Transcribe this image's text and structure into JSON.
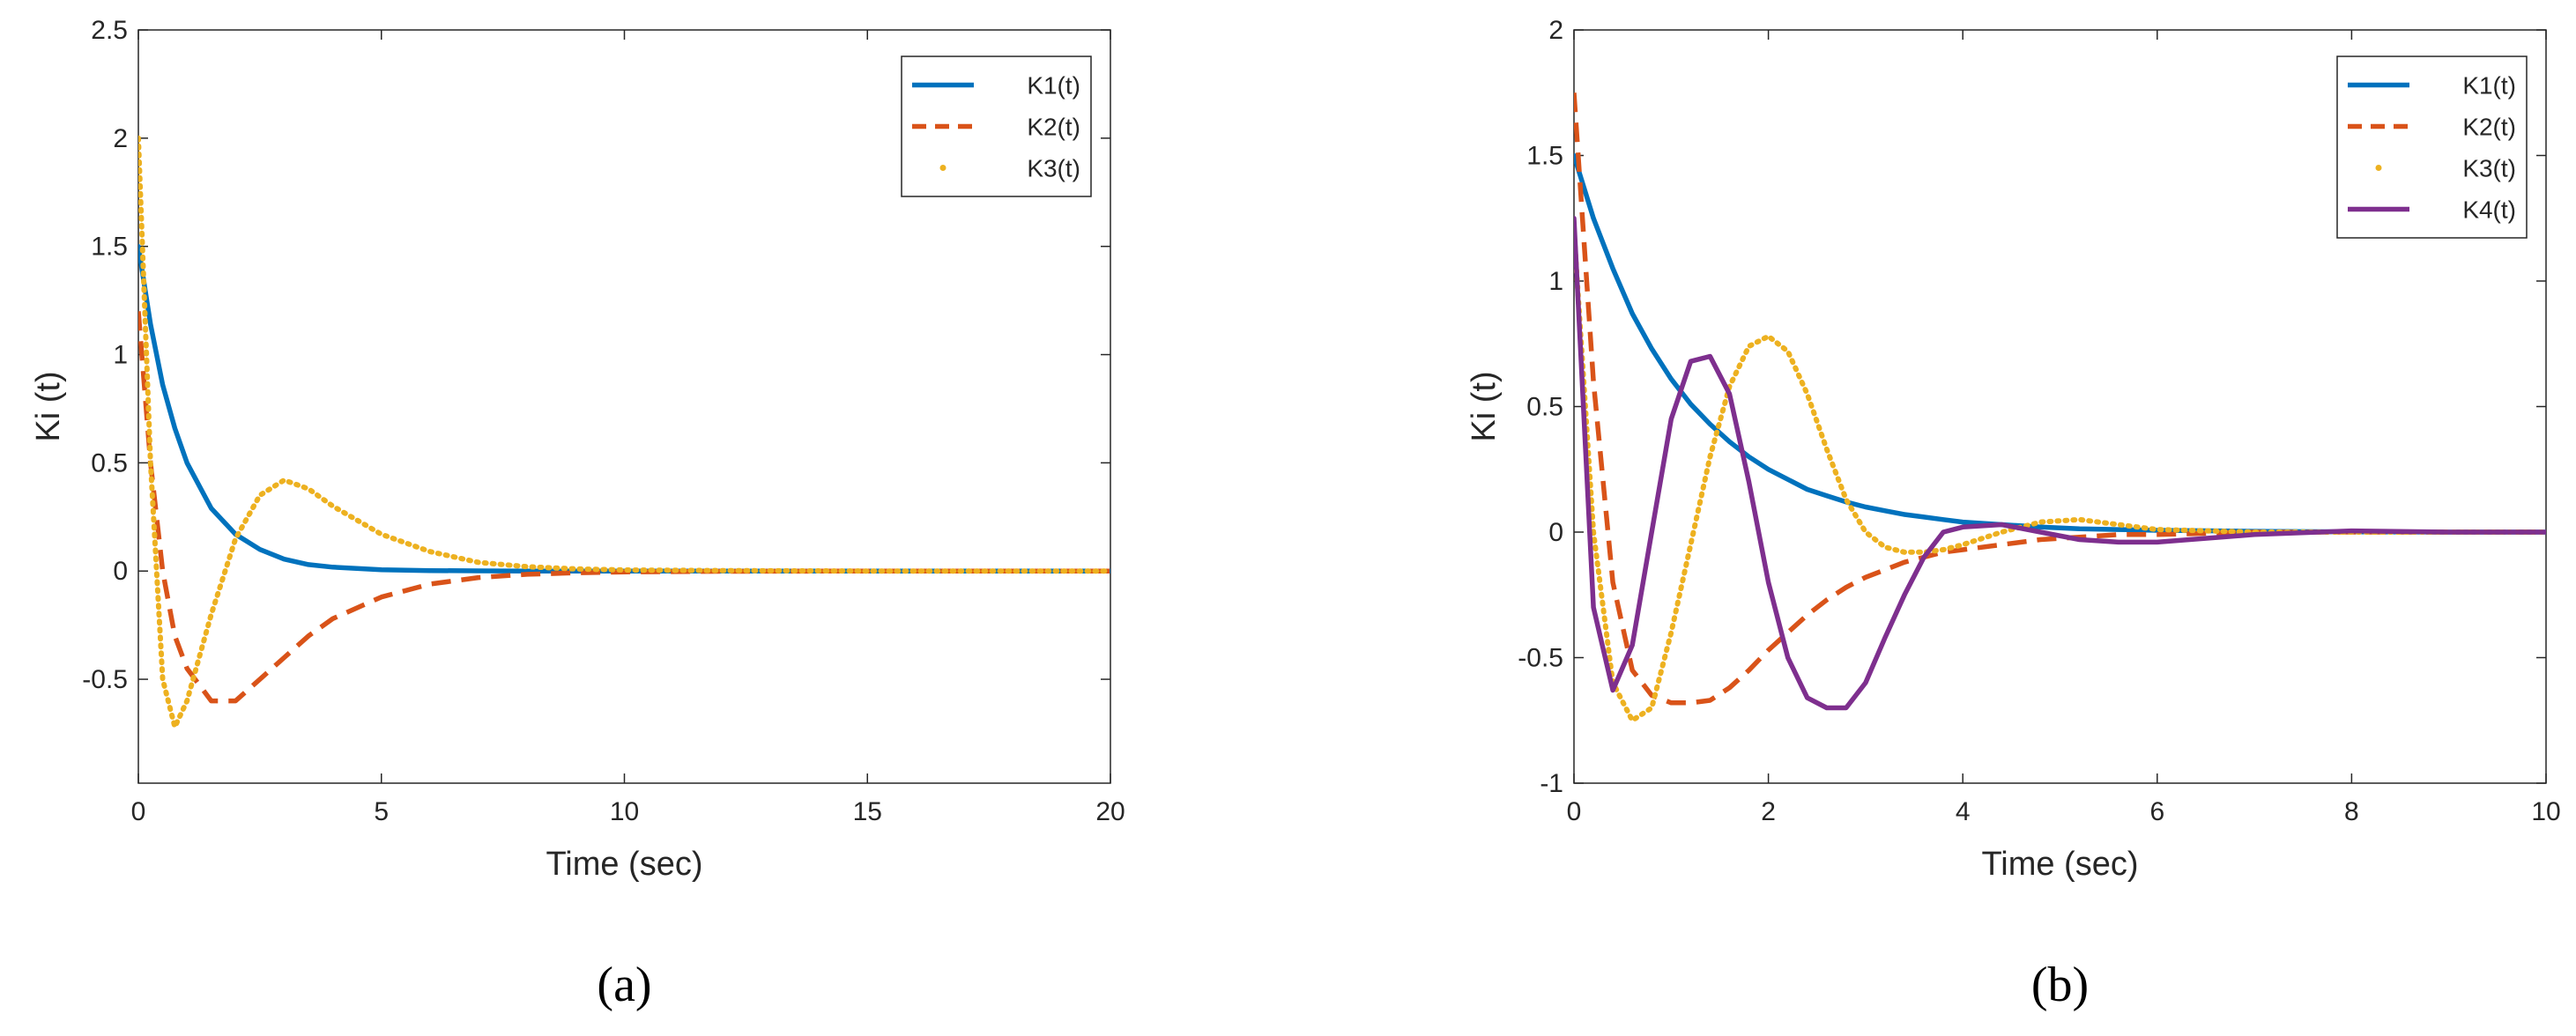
{
  "chart_data": [
    {
      "type": "line",
      "panel_label": "(a)",
      "xlabel": "Time (sec)",
      "ylabel": "Ki (t)",
      "x": [
        0,
        0.25,
        0.5,
        0.75,
        1,
        1.5,
        2,
        2.5,
        3,
        3.5,
        4,
        5,
        6,
        7,
        8,
        9,
        10,
        12,
        15,
        20
      ],
      "series": [
        {
          "name": "K1(t)",
          "color": "#0072bd",
          "style": "solid",
          "values": [
            1.5,
            1.14,
            0.86,
            0.66,
            0.5,
            0.29,
            0.17,
            0.1,
            0.055,
            0.03,
            0.018,
            0.006,
            0.002,
            0.001,
            0,
            0,
            0,
            0,
            0,
            0
          ]
        },
        {
          "name": "K2(t)",
          "color": "#d95319",
          "style": "dashed",
          "values": [
            1.2,
            0.5,
            0.0,
            -0.3,
            -0.45,
            -0.6,
            -0.6,
            -0.5,
            -0.4,
            -0.3,
            -0.22,
            -0.12,
            -0.06,
            -0.03,
            -0.015,
            -0.008,
            -0.004,
            -0.001,
            0,
            0
          ]
        },
        {
          "name": "K3(t)",
          "color": "#edb120",
          "style": "dotted",
          "values": [
            2.0,
            0.5,
            -0.5,
            -0.72,
            -0.6,
            -0.2,
            0.15,
            0.35,
            0.42,
            0.38,
            0.3,
            0.17,
            0.09,
            0.04,
            0.02,
            0.01,
            0.005,
            0.002,
            0,
            0
          ]
        }
      ],
      "xlim": [
        0,
        20
      ],
      "xticks": [
        0,
        5,
        10,
        15,
        20
      ],
      "ylim": [
        -0.98,
        2.5
      ],
      "yticks": [
        -0.5,
        0,
        0.5,
        1,
        1.5,
        2,
        2.5
      ],
      "legend": "northeast"
    },
    {
      "type": "line",
      "panel_label": "(b)",
      "xlabel": "Time (sec)",
      "ylabel": "Ki (t)",
      "x": [
        0,
        0.2,
        0.4,
        0.6,
        0.8,
        1,
        1.2,
        1.4,
        1.6,
        1.8,
        2,
        2.2,
        2.4,
        2.6,
        2.8,
        3,
        3.2,
        3.4,
        3.6,
        3.8,
        4,
        4.4,
        4.8,
        5.2,
        5.6,
        6,
        7,
        8,
        9,
        10
      ],
      "series": [
        {
          "name": "K1(t)",
          "color": "#0072bd",
          "style": "solid",
          "values": [
            1.5,
            1.25,
            1.05,
            0.87,
            0.73,
            0.61,
            0.51,
            0.43,
            0.36,
            0.3,
            0.25,
            0.21,
            0.17,
            0.145,
            0.12,
            0.1,
            0.085,
            0.07,
            0.06,
            0.05,
            0.04,
            0.03,
            0.02,
            0.013,
            0.01,
            0.007,
            0.003,
            0.001,
            0,
            0
          ]
        },
        {
          "name": "K2(t)",
          "color": "#d95319",
          "style": "dashed",
          "values": [
            1.75,
            0.6,
            -0.2,
            -0.55,
            -0.65,
            -0.68,
            -0.68,
            -0.67,
            -0.62,
            -0.55,
            -0.47,
            -0.4,
            -0.33,
            -0.27,
            -0.22,
            -0.18,
            -0.15,
            -0.12,
            -0.1,
            -0.08,
            -0.07,
            -0.05,
            -0.03,
            -0.02,
            -0.01,
            -0.01,
            0,
            0,
            0,
            0
          ]
        },
        {
          "name": "K3(t)",
          "color": "#edb120",
          "style": "dotted",
          "values": [
            1.2,
            0.0,
            -0.6,
            -0.75,
            -0.7,
            -0.4,
            -0.05,
            0.3,
            0.58,
            0.74,
            0.78,
            0.72,
            0.55,
            0.33,
            0.13,
            0.0,
            -0.06,
            -0.08,
            -0.08,
            -0.07,
            -0.05,
            0.0,
            0.04,
            0.05,
            0.03,
            0.01,
            0,
            0,
            0,
            0
          ]
        },
        {
          "name": "K4(t)",
          "color": "#7e2f8e",
          "style": "solid",
          "values": [
            1.25,
            -0.3,
            -0.63,
            -0.45,
            0.0,
            0.45,
            0.68,
            0.7,
            0.55,
            0.2,
            -0.2,
            -0.5,
            -0.66,
            -0.7,
            -0.7,
            -0.6,
            -0.42,
            -0.25,
            -0.1,
            0.0,
            0.02,
            0.03,
            0.0,
            -0.03,
            -0.04,
            -0.04,
            -0.01,
            0.005,
            0,
            0
          ]
        }
      ],
      "xlim": [
        0,
        10
      ],
      "xticks": [
        0,
        2,
        4,
        6,
        8,
        10
      ],
      "ylim": [
        -1,
        2
      ],
      "yticks": [
        -1,
        -0.5,
        0,
        0.5,
        1,
        1.5,
        2
      ],
      "legend": "northeast"
    }
  ]
}
